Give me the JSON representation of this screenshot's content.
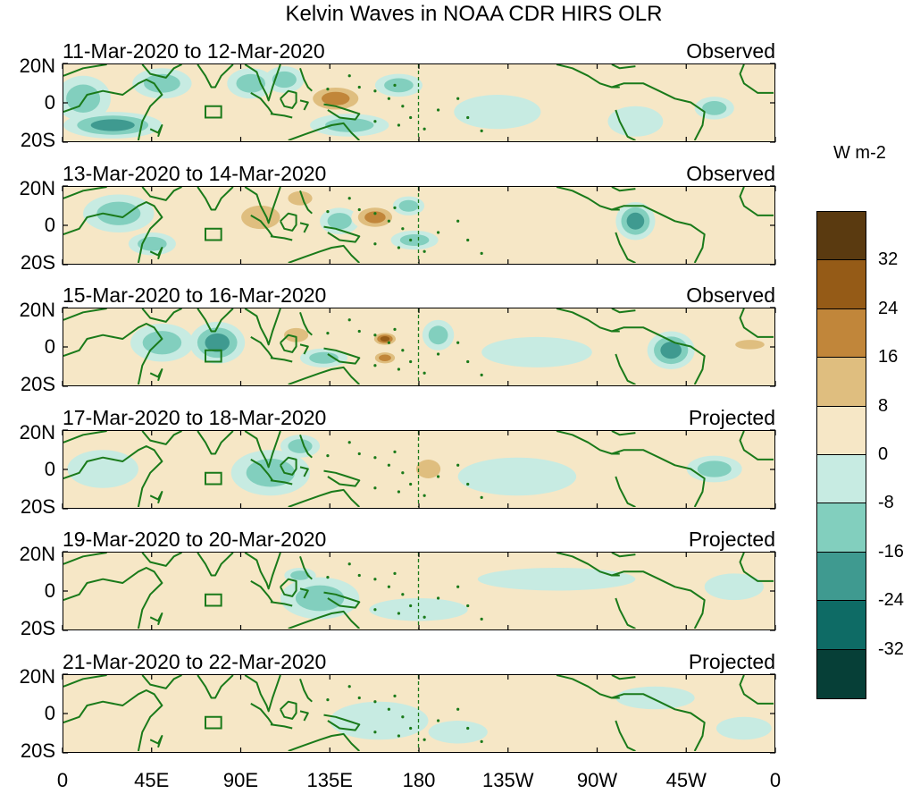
{
  "title": "Kelvin Waves in NOAA CDR HIRS OLR",
  "colors": {
    "zero_pos": "#f6e7c6",
    "zero_neg": "#c7ebe2",
    "pos": [
      "#f6e7c6",
      "#dfbe7f",
      "#c1863a",
      "#955b17",
      "#5a3a10"
    ],
    "neg": [
      "#c7ebe2",
      "#82cfbe",
      "#3f9a90",
      "#0e6b65",
      "#063f37"
    ],
    "coast": "#1a7a1a"
  },
  "chart_data": {
    "type": "heatmap",
    "variable": "Kelvin Waves in NOAA CDR HIRS OLR",
    "units": "W m-2",
    "y_ticks": [
      "20N",
      "0",
      "20S"
    ],
    "x_ticks": [
      "0",
      "45E",
      "90E",
      "135E",
      "180",
      "135W",
      "90W",
      "45W",
      "0"
    ],
    "xlim": [
      0,
      360
    ],
    "ylim": [
      -20,
      20
    ],
    "colorbar": {
      "levels": [
        "32",
        "24",
        "16",
        "8",
        "0",
        "-8",
        "-16",
        "-24",
        "-32"
      ],
      "colors": [
        "#5a3a10",
        "#955b17",
        "#c1863a",
        "#dfbe7f",
        "#f6e7c6",
        "#c7ebe2",
        "#82cfbe",
        "#3f9a90",
        "#0e6b65",
        "#063f37"
      ]
    },
    "panels": [
      {
        "period": "11-Mar-2020 to 12-Mar-2020",
        "status": "Observed",
        "anomalies": [
          {
            "lon": 10,
            "lat": 2,
            "rlon": 14,
            "rlat": 12,
            "value": -14
          },
          {
            "lon": 25,
            "lat": -12,
            "rlon": 25,
            "rlat": 7,
            "value": -18
          },
          {
            "lon": 50,
            "lat": 10,
            "rlon": 15,
            "rlat": 8,
            "value": -10
          },
          {
            "lon": 65,
            "lat": -4,
            "rlon": 12,
            "rlat": 6,
            "value": 6
          },
          {
            "lon": 95,
            "lat": 10,
            "rlon": 12,
            "rlat": 8,
            "value": -10
          },
          {
            "lon": 112,
            "lat": 12,
            "rlon": 10,
            "rlat": 7,
            "value": -14
          },
          {
            "lon": 138,
            "lat": 2,
            "rlon": 16,
            "rlat": 8,
            "value": 24
          },
          {
            "lon": 145,
            "lat": -12,
            "rlon": 20,
            "rlat": 6,
            "value": -12
          },
          {
            "lon": 170,
            "lat": 9,
            "rlon": 12,
            "rlat": 6,
            "value": -16
          },
          {
            "lon": 196,
            "lat": 0,
            "rlon": 10,
            "rlat": 7,
            "value": 5
          },
          {
            "lon": 220,
            "lat": -5,
            "rlon": 22,
            "rlat": 9,
            "value": -8
          },
          {
            "lon": 290,
            "lat": -10,
            "rlon": 14,
            "rlat": 8,
            "value": -6
          },
          {
            "lon": 330,
            "lat": -3,
            "rlon": 10,
            "rlat": 6,
            "value": -16
          }
        ]
      },
      {
        "period": "13-Mar-2020 to 14-Mar-2020",
        "status": "Observed",
        "anomalies": [
          {
            "lon": 28,
            "lat": 6,
            "rlon": 18,
            "rlat": 10,
            "value": -16
          },
          {
            "lon": 45,
            "lat": -10,
            "rlon": 12,
            "rlat": 6,
            "value": -10
          },
          {
            "lon": 100,
            "lat": 4,
            "rlon": 16,
            "rlat": 10,
            "value": 10
          },
          {
            "lon": 120,
            "lat": 14,
            "rlon": 10,
            "rlat": 6,
            "value": 14
          },
          {
            "lon": 140,
            "lat": 2,
            "rlon": 10,
            "rlat": 7,
            "value": -14
          },
          {
            "lon": 158,
            "lat": 4,
            "rlon": 12,
            "rlat": 7,
            "value": 24
          },
          {
            "lon": 175,
            "lat": 10,
            "rlon": 8,
            "rlat": 5,
            "value": -16
          },
          {
            "lon": 178,
            "lat": -8,
            "rlon": 12,
            "rlat": 5,
            "value": -16
          },
          {
            "lon": 220,
            "lat": -6,
            "rlon": 18,
            "rlat": 8,
            "value": 6
          },
          {
            "lon": 290,
            "lat": 2,
            "rlon": 10,
            "rlat": 10,
            "value": -18
          },
          {
            "lon": 320,
            "lat": 5,
            "rlon": 14,
            "rlat": 8,
            "value": 8
          }
        ]
      },
      {
        "period": "15-Mar-2020 to 16-Mar-2020",
        "status": "Observed",
        "anomalies": [
          {
            "lon": 50,
            "lat": 2,
            "rlon": 16,
            "rlat": 10,
            "value": -10
          },
          {
            "lon": 78,
            "lat": 2,
            "rlon": 14,
            "rlat": 11,
            "value": -18
          },
          {
            "lon": 118,
            "lat": 6,
            "rlon": 10,
            "rlat": 6,
            "value": 12
          },
          {
            "lon": 132,
            "lat": -6,
            "rlon": 12,
            "rlat": 5,
            "value": -14
          },
          {
            "lon": 163,
            "lat": 4,
            "rlon": 7,
            "rlat": 4,
            "value": 26
          },
          {
            "lon": 163,
            "lat": -6,
            "rlon": 7,
            "rlat": 4,
            "value": 24
          },
          {
            "lon": 190,
            "lat": 6,
            "rlon": 8,
            "rlat": 8,
            "value": -10
          },
          {
            "lon": 240,
            "lat": -3,
            "rlon": 28,
            "rlat": 8,
            "value": -6
          },
          {
            "lon": 308,
            "lat": -2,
            "rlon": 12,
            "rlat": 10,
            "value": -22
          },
          {
            "lon": 348,
            "lat": 1,
            "rlon": 12,
            "rlat": 4,
            "value": 12
          }
        ]
      },
      {
        "period": "17-Mar-2020 to 18-Mar-2020",
        "status": "Projected",
        "anomalies": [
          {
            "lon": 20,
            "lat": 0,
            "rlon": 18,
            "rlat": 10,
            "value": -8
          },
          {
            "lon": 105,
            "lat": -2,
            "rlon": 20,
            "rlat": 12,
            "value": -16
          },
          {
            "lon": 120,
            "lat": 12,
            "rlon": 10,
            "rlat": 6,
            "value": -10
          },
          {
            "lon": 155,
            "lat": -6,
            "rlon": 14,
            "rlat": 6,
            "value": 5
          },
          {
            "lon": 185,
            "lat": 0,
            "rlon": 10,
            "rlat": 8,
            "value": 10
          },
          {
            "lon": 230,
            "lat": -4,
            "rlon": 30,
            "rlat": 10,
            "value": -5
          },
          {
            "lon": 330,
            "lat": 0,
            "rlon": 14,
            "rlat": 7,
            "value": -16
          }
        ]
      },
      {
        "period": "19-Mar-2020 to 20-Mar-2020",
        "status": "Projected",
        "anomalies": [
          {
            "lon": 130,
            "lat": -4,
            "rlon": 20,
            "rlat": 11,
            "value": -10
          },
          {
            "lon": 120,
            "lat": 8,
            "rlon": 8,
            "rlat": 4,
            "value": -14
          },
          {
            "lon": 180,
            "lat": -10,
            "rlon": 25,
            "rlat": 6,
            "value": -6
          },
          {
            "lon": 250,
            "lat": 6,
            "rlon": 40,
            "rlat": 6,
            "value": -5
          },
          {
            "lon": 340,
            "lat": 2,
            "rlon": 15,
            "rlat": 7,
            "value": -6
          }
        ]
      },
      {
        "period": "21-Mar-2020 to 22-Mar-2020",
        "status": "Projected",
        "anomalies": [
          {
            "lon": 160,
            "lat": -4,
            "rlon": 25,
            "rlat": 10,
            "value": -6
          },
          {
            "lon": 200,
            "lat": -10,
            "rlon": 15,
            "rlat": 6,
            "value": -6
          },
          {
            "lon": 300,
            "lat": 8,
            "rlon": 20,
            "rlat": 6,
            "value": -5
          },
          {
            "lon": 345,
            "lat": -8,
            "rlon": 14,
            "rlat": 6,
            "value": -6
          }
        ]
      }
    ]
  }
}
